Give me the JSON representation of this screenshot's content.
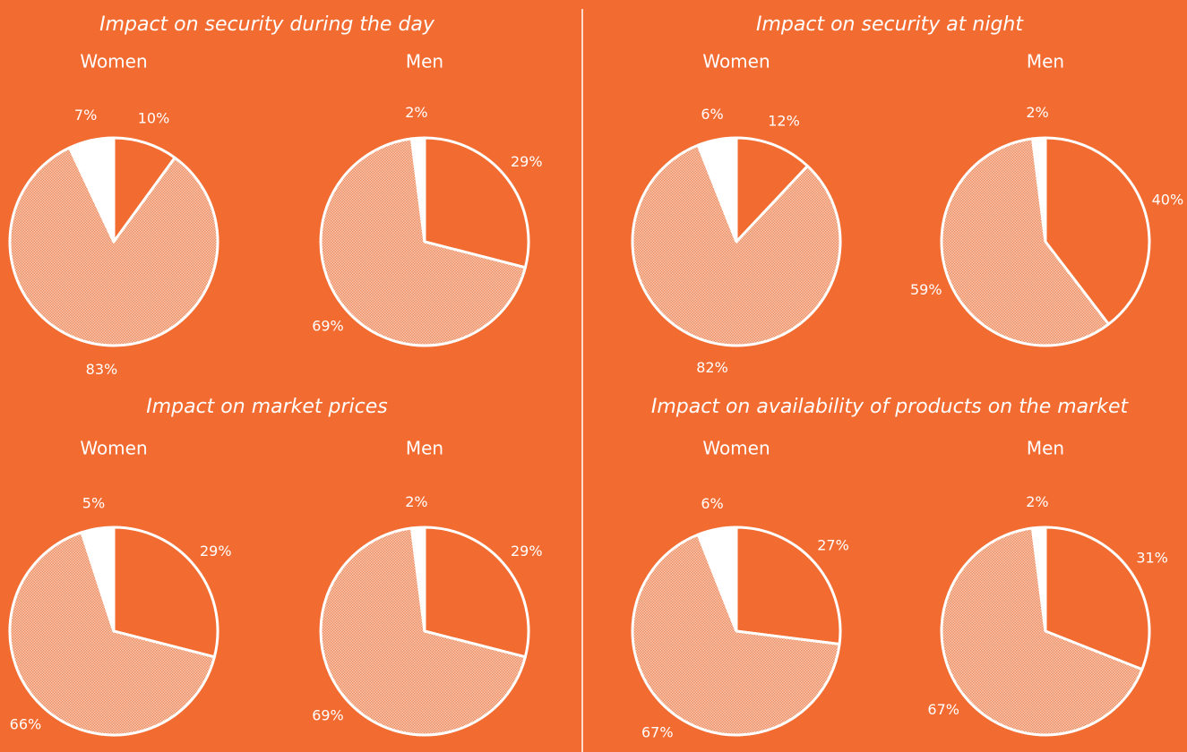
{
  "chart_data": [
    {
      "type": "pie",
      "title": "Impact on security during the day",
      "colors": [
        "#f26b30",
        "#f6b494",
        "#ffffff"
      ],
      "series": [
        {
          "name": "Women",
          "values": [
            10,
            83,
            7
          ],
          "value_labels": [
            "10%",
            "83%",
            "7%"
          ]
        },
        {
          "name": "Men",
          "values": [
            29,
            69,
            2
          ],
          "value_labels": [
            "29%",
            "69%",
            "2%"
          ]
        }
      ]
    },
    {
      "type": "pie",
      "title": "Impact on security at night",
      "colors": [
        "#f26b30",
        "#f6b494",
        "#ffffff"
      ],
      "series": [
        {
          "name": "Women",
          "values": [
            12,
            82,
            6
          ],
          "value_labels": [
            "12%",
            "82%",
            "6%"
          ]
        },
        {
          "name": "Men",
          "values": [
            40,
            59,
            2
          ],
          "value_labels": [
            "40%",
            "59%",
            "2%"
          ]
        }
      ]
    },
    {
      "type": "pie",
      "title": "Impact on market prices",
      "colors": [
        "#f26b30",
        "#f6b494",
        "#ffffff"
      ],
      "series": [
        {
          "name": "Women",
          "values": [
            29,
            66,
            5
          ],
          "value_labels": [
            "29%",
            "66%",
            "5%"
          ]
        },
        {
          "name": "Men",
          "values": [
            29,
            69,
            2
          ],
          "value_labels": [
            "29%",
            "69%",
            "2%"
          ]
        }
      ]
    },
    {
      "type": "pie",
      "title": "Impact on availability of products on the market",
      "colors": [
        "#f26b30",
        "#f6b494",
        "#ffffff"
      ],
      "series": [
        {
          "name": "Women",
          "values": [
            27,
            67,
            6
          ],
          "value_labels": [
            "27%",
            "67%",
            "6%"
          ]
        },
        {
          "name": "Men",
          "values": [
            31,
            67,
            2
          ],
          "value_labels": [
            "31%",
            "67%",
            "2%"
          ]
        }
      ]
    }
  ]
}
